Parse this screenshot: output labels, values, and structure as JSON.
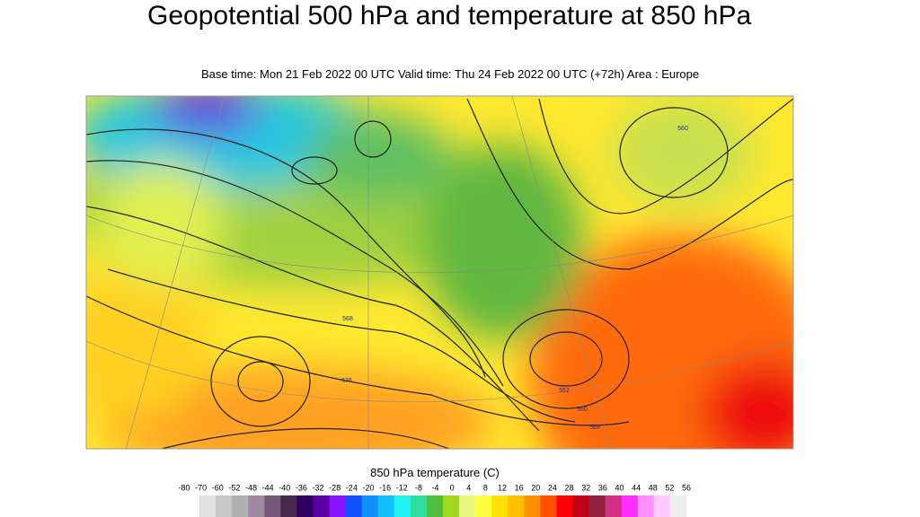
{
  "header": {
    "title": "Geopotential 500 hPa and temperature at 850 hPa",
    "subtitle": "Base time: Mon 21 Feb 2022 00 UTC Valid time: Thu 24 Feb 2022 00 UTC (+72h) Area : Europe"
  },
  "map": {
    "contour_labels": [
      "568",
      "576",
      "552",
      "560",
      "568",
      "560"
    ]
  },
  "legend": {
    "title": "850 hPa temperature (C)",
    "labels": [
      "-80",
      "-70",
      "-60",
      "-52",
      "-48",
      "-44",
      "-40",
      "-36",
      "-32",
      "-28",
      "-24",
      "-20",
      "-16",
      "-12",
      "-8",
      "-4",
      "0",
      "4",
      "8",
      "12",
      "16",
      "20",
      "24",
      "28",
      "32",
      "36",
      "40",
      "44",
      "48",
      "52",
      "56"
    ],
    "colors": [
      "#e0e0e0",
      "#c8c8c8",
      "#b0b0b0",
      "#a08aa0",
      "#785a78",
      "#4a2a4a",
      "#300060",
      "#5a00a0",
      "#8a10ff",
      "#1050ff",
      "#1090ff",
      "#10c0ff",
      "#20f0f0",
      "#30e0a0",
      "#50c040",
      "#a0d820",
      "#e8f880",
      "#ffff40",
      "#ffe000",
      "#ffc000",
      "#ff9000",
      "#ff5000",
      "#ff0000",
      "#c00010",
      "#902040",
      "#d03080",
      "#ff30ff",
      "#ff90ff",
      "#ffc8ff",
      "#eeeeee"
    ]
  }
}
